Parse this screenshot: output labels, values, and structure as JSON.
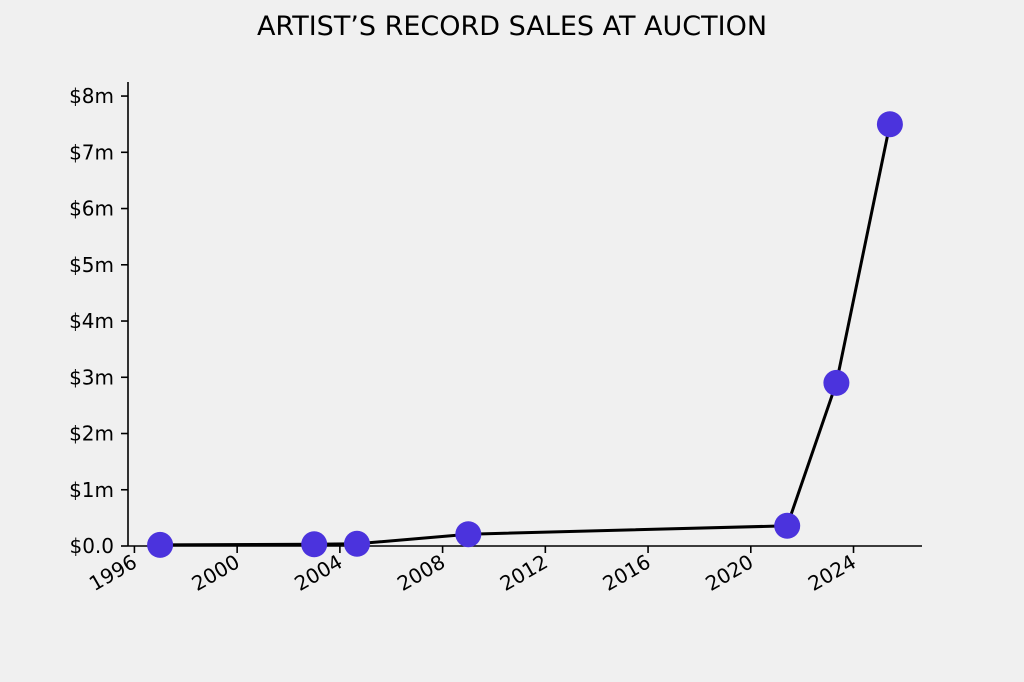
{
  "chart_data": {
    "type": "line",
    "title": "ARTIST’S RECORD SALES AT AUCTION",
    "xlabel": "",
    "ylabel": "",
    "x": [
      "1997-01",
      "2003-01",
      "2004-09",
      "2009-01",
      "2021-06",
      "2023-05",
      "2025-06"
    ],
    "series": [
      {
        "values": [
          0.02,
          0.03,
          0.04,
          0.21,
          0.36,
          2.9,
          7.5
        ]
      }
    ],
    "x_ticks": [
      "1996",
      "2000",
      "2004",
      "2008",
      "2012",
      "2016",
      "2020",
      "2024"
    ],
    "y_ticks": [
      {
        "value": 0,
        "label": "$0.0"
      },
      {
        "value": 1,
        "label": "$1m"
      },
      {
        "value": 2,
        "label": "$2m"
      },
      {
        "value": 3,
        "label": "$3m"
      },
      {
        "value": 4,
        "label": "$4m"
      },
      {
        "value": 5,
        "label": "$5m"
      },
      {
        "value": 6,
        "label": "$6m"
      },
      {
        "value": 7,
        "label": "$7m"
      },
      {
        "value": 8,
        "label": "$8m"
      }
    ],
    "ylim": [
      0,
      8.25
    ],
    "xlim": [
      "1995-10",
      "2026-09"
    ],
    "grid": false,
    "colors": {
      "marker": "#4b33dd",
      "line": "#000000",
      "background": "#f0f0f0"
    }
  }
}
